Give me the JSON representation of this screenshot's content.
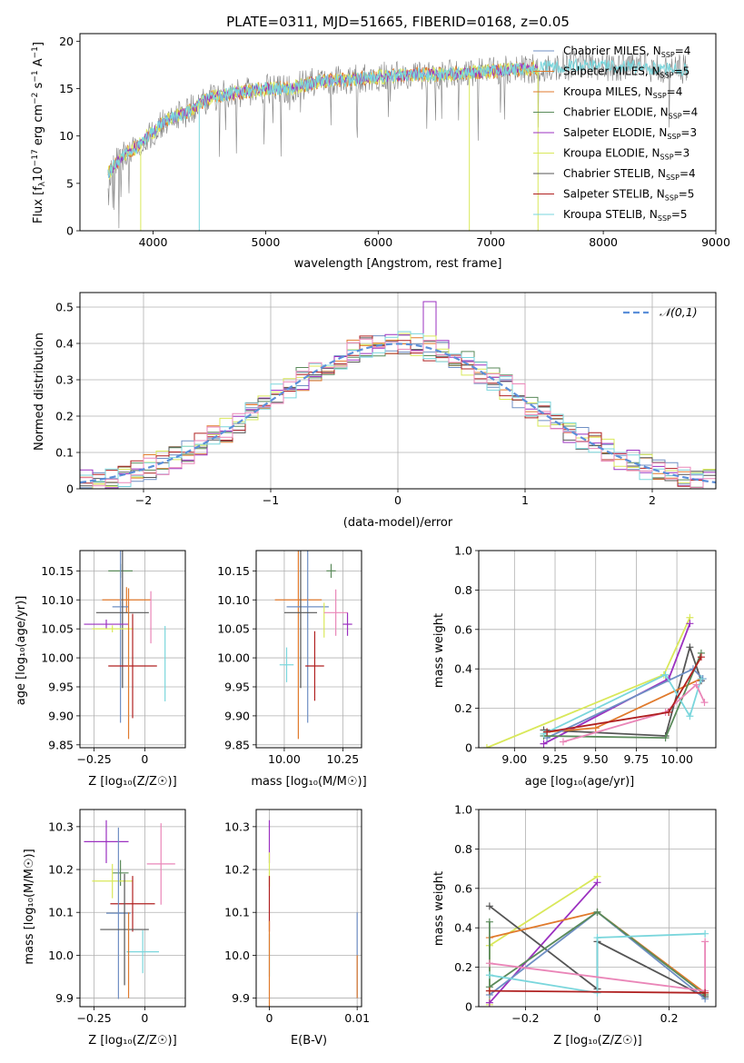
{
  "colors": {
    "chabrier_miles": "#6f8fc4",
    "salpeter_miles": "#e07a2c",
    "kroupa_miles": "#3f7f3f",
    "chabrier_elodie": "#5a8a5a",
    "salpeter_elodie": "#9b30c0",
    "kroupa_elodie": "#d9e85a",
    "chabrier_stelib": "#555555",
    "salpeter_stelib": "#b02020",
    "kroupa_stelib": "#7ad6dc",
    "pink": "#ea86b8",
    "spectrum_gray": "#808080",
    "gaussian": "#5b8fd9"
  },
  "legend_spectrum": [
    {
      "text": "Chabrier MILES, N",
      "sub": "SSP",
      "val": "=4"
    },
    {
      "text": "Salpeter MILES, N",
      "sub": "SSP",
      "val": "=5"
    },
    {
      "text": "Kroupa MILES, N",
      "sub": "SSP",
      "val": "=4"
    },
    {
      "text": "Chabrier ELODIE, N",
      "sub": "SSP",
      "val": "=4"
    },
    {
      "text": "Salpeter ELODIE, N",
      "sub": "SSP",
      "val": "=3"
    },
    {
      "text": "Kroupa ELODIE, N",
      "sub": "SSP",
      "val": "=3"
    },
    {
      "text": "Chabrier STELIB, N",
      "sub": "SSP",
      "val": "=4"
    },
    {
      "text": "Salpeter STELIB, N",
      "sub": "SSP",
      "val": "=5"
    },
    {
      "text": "Kroupa STELIB, N",
      "sub": "SSP",
      "val": "=5"
    }
  ],
  "chart_data": [
    {
      "type": "line",
      "title": "PLATE=0311, MJD=51665, FIBERID=0168, z=0.05",
      "xlabel": "wavelength [Angstrom, rest frame]",
      "ylabel": "Flux [f_λ 10^-17 erg cm^-2 s^-1 A^-1]",
      "xlim": [
        3350,
        9000
      ],
      "ylim": [
        0,
        20.8
      ],
      "xticks": [
        4000,
        5000,
        6000,
        7000,
        8000,
        9000
      ],
      "yticks": [
        0,
        5,
        10,
        15,
        20
      ],
      "continuum": [
        [
          3600,
          6.0
        ],
        [
          3700,
          7.5
        ],
        [
          3800,
          8.5
        ],
        [
          3900,
          9.2
        ],
        [
          3950,
          10.0
        ],
        [
          4000,
          10.5
        ],
        [
          4100,
          11.5
        ],
        [
          4300,
          12.5
        ],
        [
          4500,
          14.0
        ],
        [
          4700,
          14.5
        ],
        [
          5000,
          15.0
        ],
        [
          5200,
          15.0
        ],
        [
          5500,
          15.8
        ],
        [
          5800,
          16.0
        ],
        [
          6000,
          16.2
        ],
        [
          6300,
          16.5
        ],
        [
          6600,
          16.5
        ],
        [
          7000,
          16.8
        ],
        [
          7400,
          17.2
        ],
        [
          7800,
          17.5
        ],
        [
          8200,
          17.3
        ],
        [
          8700,
          17.0
        ]
      ],
      "drops": [
        [
          3890,
          0
        ],
        [
          4410,
          0
        ],
        [
          6810,
          0
        ],
        [
          7420,
          0
        ]
      ]
    },
    {
      "type": "bar",
      "title": "",
      "xlabel": "(data-model)/error",
      "ylabel": "Normed distribution",
      "xlim": [
        -2.5,
        2.5
      ],
      "ylim": [
        0,
        0.54
      ],
      "xticks": [
        -2,
        -1,
        0,
        1,
        2
      ],
      "yticks": [
        0.0,
        0.1,
        0.2,
        0.3,
        0.4,
        0.5
      ],
      "legend": "𝒩(0,1)",
      "bin_width": 0.1,
      "peak_bin": 0.3,
      "peak_value": 0.515
    },
    {
      "type": "scatter",
      "xlabel": "Z [log₁₀(Z/Z☉)]",
      "ylabel": "age  [log₁₀(age/yr)]",
      "xlim": [
        -0.32,
        0.2
      ],
      "ylim": [
        9.845,
        10.185
      ],
      "xticks": [
        -0.25,
        0.0
      ],
      "yticks": [
        9.85,
        9.9,
        9.95,
        10.0,
        10.05,
        10.1,
        10.15
      ],
      "points": [
        {
          "series": "chabrier_elodie",
          "x": -0.12,
          "xerr": 0.06,
          "y": 10.15,
          "yerr": 0.012
        },
        {
          "series": "salpeter_miles",
          "x": -0.09,
          "xerr": 0.12,
          "y": 10.1,
          "yerr": 0.022
        },
        {
          "series": "pink",
          "x": 0.03,
          "xerr": 0.0,
          "y": 10.07,
          "yerr": 0.045
        },
        {
          "series": "chabrier_miles",
          "x": -0.12,
          "xerr": 0.04,
          "y": 10.088,
          "yerr": 0.2
        },
        {
          "series": "chabrier_stelib",
          "x": -0.11,
          "xerr": 0.13,
          "y": 10.078,
          "yerr": 0.13
        },
        {
          "series": "salpeter_elodie",
          "x": -0.19,
          "xerr": 0.11,
          "y": 10.058,
          "yerr": 0.008
        },
        {
          "series": "kroupa_elodie",
          "x": -0.16,
          "xerr": 0.1,
          "y": 10.05,
          "yerr": 0.006
        },
        {
          "series": "salpeter_stelib",
          "x": -0.06,
          "xerr": 0.12,
          "y": 9.986,
          "yerr": 0.09
        },
        {
          "series": "kroupa_stelib",
          "x": 0.1,
          "xerr": 0.0,
          "y": 9.99,
          "yerr": 0.065
        },
        {
          "series": "salpeter_miles",
          "x": -0.08,
          "xerr": 0.0,
          "y": 9.99,
          "yerr": 0.13
        }
      ]
    },
    {
      "type": "scatter",
      "xlabel": "mass [log₁₀(M/M☉)]",
      "ylabel": "",
      "xlim": [
        9.88,
        10.33
      ],
      "ylim": [
        9.845,
        10.185
      ],
      "xticks": [
        10.0,
        10.25
      ],
      "yticks": [
        9.85,
        9.9,
        9.95,
        10.0,
        10.05,
        10.1,
        10.15
      ],
      "points": [
        {
          "series": "chabrier_elodie",
          "x": 10.2,
          "xerr": 0.02,
          "y": 10.15,
          "yerr": 0.012
        },
        {
          "series": "salpeter_miles",
          "x": 10.06,
          "xerr": 0.1,
          "y": 10.1,
          "yerr": 0.24
        },
        {
          "series": "chabrier_miles",
          "x": 10.1,
          "xerr": 0.09,
          "y": 10.088,
          "yerr": 0.2
        },
        {
          "series": "chabrier_stelib",
          "x": 10.07,
          "xerr": 0.07,
          "y": 10.078,
          "yerr": 0.13
        },
        {
          "series": "kroupa_elodie",
          "x": 10.17,
          "xerr": 0.0,
          "y": 10.065,
          "yerr": 0.03
        },
        {
          "series": "pink",
          "x": 10.22,
          "xerr": 0.05,
          "y": 10.078,
          "yerr": 0.04
        },
        {
          "series": "salpeter_elodie",
          "x": 10.27,
          "xerr": 0.02,
          "y": 10.058,
          "yerr": 0.02
        },
        {
          "series": "salpeter_stelib",
          "x": 10.13,
          "xerr": 0.04,
          "y": 9.986,
          "yerr": 0.06
        },
        {
          "series": "kroupa_stelib",
          "x": 10.01,
          "xerr": 0.03,
          "y": 9.988,
          "yerr": 0.03
        }
      ]
    },
    {
      "type": "line",
      "xlabel": "age  [log₁₀(age/yr)]",
      "ylabel": "mass weight",
      "xlim": [
        8.78,
        10.24
      ],
      "ylim": [
        0.0,
        1.0
      ],
      "xticks": [
        9.0,
        9.25,
        9.5,
        9.75,
        10.0
      ],
      "yticks": [
        0.0,
        0.2,
        0.4,
        0.6,
        0.8,
        1.0
      ],
      "series": [
        {
          "name": "kroupa_elodie",
          "x": [
            8.83,
            9.92,
            10.08
          ],
          "y": [
            0.0,
            0.37,
            0.66
          ]
        },
        {
          "name": "salpeter_elodie",
          "x": [
            9.18,
            9.95,
            10.08
          ],
          "y": [
            0.02,
            0.35,
            0.63
          ]
        },
        {
          "name": "chabrier_stelib",
          "x": [
            9.18,
            9.93,
            10.08,
            10.15
          ],
          "y": [
            0.09,
            0.06,
            0.51,
            0.34
          ]
        },
        {
          "name": "salpeter_miles",
          "x": [
            9.2,
            9.5,
            10.15
          ],
          "y": [
            0.08,
            0.1,
            0.35
          ]
        },
        {
          "name": "chabrier_miles",
          "x": [
            9.2,
            10.1,
            10.16
          ],
          "y": [
            0.05,
            0.4,
            0.35
          ]
        },
        {
          "name": "chabrier_elodie",
          "x": [
            9.18,
            9.93,
            10.15
          ],
          "y": [
            0.06,
            0.05,
            0.48
          ]
        },
        {
          "name": "kroupa_stelib",
          "x": [
            9.18,
            9.93,
            10.08,
            10.15
          ],
          "y": [
            0.07,
            0.37,
            0.16,
            0.35
          ]
        },
        {
          "name": "pink",
          "x": [
            9.3,
            9.93,
            10.12,
            10.17
          ],
          "y": [
            0.03,
            0.18,
            0.32,
            0.23
          ]
        },
        {
          "name": "salpeter_stelib",
          "x": [
            9.2,
            9.95,
            10.15
          ],
          "y": [
            0.08,
            0.18,
            0.46
          ]
        }
      ]
    },
    {
      "type": "scatter",
      "xlabel": "Z [log₁₀(Z/Z☉)]",
      "ylabel": "mass [log₁₀(M/M☉)]",
      "xlim": [
        -0.32,
        0.2
      ],
      "ylim": [
        9.88,
        10.34
      ],
      "xticks": [
        -0.25,
        0.0
      ],
      "yticks": [
        9.9,
        10.0,
        10.1,
        10.2,
        10.3
      ],
      "points": [
        {
          "series": "salpeter_elodie",
          "x": -0.19,
          "xerr": 0.11,
          "y": 10.265,
          "yerr": 0.05
        },
        {
          "series": "pink",
          "x": 0.08,
          "xerr": 0.07,
          "y": 10.213,
          "yerr": 0.095
        },
        {
          "series": "chabrier_elodie",
          "x": -0.12,
          "xerr": 0.04,
          "y": 10.192,
          "yerr": 0.03
        },
        {
          "series": "kroupa_elodie",
          "x": -0.16,
          "xerr": 0.1,
          "y": 10.173,
          "yerr": 0.04
        },
        {
          "series": "salpeter_stelib",
          "x": -0.06,
          "xerr": 0.11,
          "y": 10.12,
          "yerr": 0.065
        },
        {
          "series": "chabrier_miles",
          "x": -0.13,
          "xerr": 0.06,
          "y": 10.098,
          "yerr": 0.2
        },
        {
          "series": "chabrier_stelib",
          "x": -0.1,
          "xerr": 0.12,
          "y": 10.06,
          "yerr": 0.13
        },
        {
          "series": "kroupa_stelib",
          "x": -0.01,
          "xerr": 0.08,
          "y": 10.008,
          "yerr": 0.05
        },
        {
          "series": "salpeter_miles",
          "x": -0.08,
          "xerr": 0.0,
          "y": 10.0,
          "yerr": 0.1
        }
      ]
    },
    {
      "type": "scatter",
      "xlabel": "E(B-V)",
      "ylabel": "",
      "xlim": [
        -0.0015,
        0.0105
      ],
      "ylim": [
        9.88,
        10.34
      ],
      "xticks": [
        0.0,
        0.01
      ],
      "yticks": [
        9.9,
        10.0,
        10.1,
        10.2,
        10.3
      ],
      "points": [
        {
          "series": "salpeter_elodie",
          "x": 0.0,
          "xerr": 0,
          "y": 10.265,
          "yerr": 0.05
        },
        {
          "series": "kroupa_elodie",
          "x": 0.0,
          "xerr": 0,
          "y": 10.2,
          "yerr": 0.04
        },
        {
          "series": "salpeter_stelib",
          "x": 0.0,
          "xerr": 0,
          "y": 10.12,
          "yerr": 0.065
        },
        {
          "series": "kroupa_stelib",
          "x": 0.0,
          "xerr": 0,
          "y": 10.0,
          "yerr": 0.05
        },
        {
          "series": "salpeter_miles",
          "x": 0.0,
          "xerr": 0,
          "y": 9.98,
          "yerr": 0.1
        },
        {
          "series": "chabrier_miles",
          "x": 0.01,
          "xerr": 0,
          "y": 10.0,
          "yerr": 0.1
        },
        {
          "series": "salpeter_miles",
          "x": 0.01,
          "xerr": 0,
          "y": 9.95,
          "yerr": 0.05
        }
      ]
    },
    {
      "type": "line",
      "xlabel": "Z [log₁₀(Z/Z☉)]",
      "ylabel": "mass weight",
      "xlim": [
        -0.33,
        0.33
      ],
      "ylim": [
        0.0,
        1.0
      ],
      "xticks": [
        -0.2,
        0.0,
        0.2
      ],
      "yticks": [
        0.0,
        0.2,
        0.4,
        0.6,
        0.8,
        1.0
      ],
      "series": [
        {
          "name": "kroupa_elodie",
          "x": [
            -0.3,
            -0.3,
            0.0
          ],
          "y": [
            0.01,
            0.31,
            0.66
          ]
        },
        {
          "name": "salpeter_elodie",
          "x": [
            -0.3,
            0.0
          ],
          "y": [
            0.02,
            0.63
          ]
        },
        {
          "name": "chabrier_stelib",
          "x": [
            -0.3,
            0.0,
            0.0,
            0.3
          ],
          "y": [
            0.51,
            0.09,
            0.33,
            0.05
          ]
        },
        {
          "name": "salpeter_miles",
          "x": [
            -0.3,
            0.0,
            0.3
          ],
          "y": [
            0.35,
            0.48,
            0.07
          ]
        },
        {
          "name": "chabrier_miles",
          "x": [
            -0.3,
            0.0,
            0.3
          ],
          "y": [
            0.06,
            0.48,
            0.04
          ]
        },
        {
          "name": "chabrier_elodie",
          "x": [
            -0.3,
            -0.3,
            0.0,
            0.3
          ],
          "y": [
            0.43,
            0.1,
            0.48,
            0.06
          ]
        },
        {
          "name": "kroupa_stelib",
          "x": [
            -0.3,
            0.0,
            0.0,
            0.3
          ],
          "y": [
            0.16,
            0.07,
            0.35,
            0.37
          ]
        },
        {
          "name": "pink",
          "x": [
            -0.3,
            0.3,
            0.3
          ],
          "y": [
            0.22,
            0.08,
            0.33
          ]
        },
        {
          "name": "salpeter_stelib",
          "x": [
            -0.3,
            0.3
          ],
          "y": [
            0.08,
            0.07
          ]
        }
      ]
    }
  ]
}
